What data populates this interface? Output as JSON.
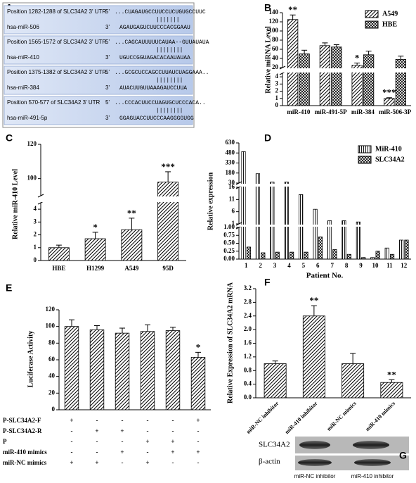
{
  "alignment": {
    "panel": "A",
    "end_labels": [
      "5'",
      "3'"
    ],
    "entries": [
      {
        "position": "Position 1282-1288 of SLC34A2 3' UTR",
        "mirna": "hsa-miR-506",
        "utr_seq": "...CUAGAUGCCUUCCUCUGUGCCUUC",
        "pairs": "|||||||",
        "mirna_seq": "AGAUGAGUCUUCCCACGGAAU"
      },
      {
        "position": "Position 1565-1572 of SLC34A2 3' UTR",
        "mirna": "hsa-miR-410",
        "utr_seq": "...CAGCAUUUUUCAUAA--GUUAUAUA",
        "pairs": "||||||||",
        "mirna_seq": "UGUCCGGUAGACACAAUAUAA"
      },
      {
        "position": "Position 1375-1382 of SLC34A2 3' UTR",
        "mirna": "hsa-miR-384",
        "utr_seq": "...GCGCUCCAGCCUUAUCUAGGAAA..",
        "pairs": "||||||||",
        "mirna_seq": "AUACUUGUUAAAGAUCCUUA"
      },
      {
        "position": "Position 570-577 of SLC34A2 3' UTR",
        "mirna": "hsa-miR-491-5p",
        "utr_seq": "...CCCACUUCCUAGUGCUCCCACA..",
        "pairs": "||||||||",
        "mirna_seq": "GGAGUACCUUCCCAAGGGGUGG"
      }
    ]
  },
  "chart_data": [
    {
      "type": "bar",
      "panel": "B",
      "ylabel": "Relative miRNA Level",
      "categories": [
        "miR-410",
        "miR-491-5P",
        "miR-384",
        "miR-506-3P"
      ],
      "series": [
        {
          "name": "A549",
          "color": "#000000",
          "pattern": "diagonal",
          "values": [
            125,
            68,
            25,
            1.0
          ],
          "errors": [
            10,
            6,
            5,
            0.1
          ],
          "annotations": [
            "**",
            null,
            "*",
            "***"
          ]
        },
        {
          "name": "HBE",
          "color": "#000000",
          "pattern": "crosshatch",
          "values": [
            50,
            65,
            48,
            38
          ],
          "errors": [
            8,
            5,
            8,
            7
          ],
          "annotations": [
            null,
            null,
            null,
            null
          ]
        }
      ],
      "y_segments": [
        {
          "ylim": [
            0,
            4.5
          ],
          "yticks": [
            0,
            1,
            2,
            3,
            4
          ]
        },
        {
          "ylim": [
            20,
            140
          ],
          "yticks": [
            20,
            40,
            60,
            80,
            100,
            120,
            140
          ]
        }
      ],
      "legend": "upper right"
    },
    {
      "type": "bar",
      "panel": "C",
      "ylabel": "Relative miR-410 Level",
      "categories": [
        "HBE",
        "H1299",
        "A549",
        "95D"
      ],
      "color": "#000000",
      "pattern": "diagonal",
      "values": [
        1.0,
        1.7,
        2.4,
        98
      ],
      "errors": [
        0.2,
        0.5,
        0.9,
        6
      ],
      "annotations": [
        null,
        "*",
        "**",
        "***"
      ],
      "y_segments": [
        {
          "ylim": [
            0,
            4.5
          ],
          "yticks": [
            0,
            1,
            2,
            3,
            4
          ]
        },
        {
          "ylim": [
            90,
            120
          ],
          "yticks": [
            100,
            120
          ]
        }
      ]
    },
    {
      "type": "bar",
      "panel": "D",
      "ylabel": "Relative expression",
      "xlabel": "Patient No.",
      "categories": [
        "1",
        "2",
        "3",
        "4",
        "5",
        "6",
        "7",
        "8",
        "9",
        "10",
        "11",
        "12"
      ],
      "series": [
        {
          "name": "MiR-410",
          "color": "#000000",
          "pattern": "vertical",
          "values": [
            500,
            170,
            45,
            45,
            13,
            7,
            2.3,
            2.3,
            1.8,
            0.05,
            0.35,
            0.6
          ]
        },
        {
          "name": "SLC34A2",
          "color": "#000000",
          "pattern": "crosshatch",
          "values": [
            0.38,
            0.2,
            0.22,
            0.22,
            0.22,
            0.7,
            0.3,
            0.15,
            0.05,
            0.25,
            0.15,
            0.6
          ]
        }
      ],
      "y_segments": [
        {
          "ylim": [
            0,
            1
          ],
          "yticks": [
            {
              "value": 0,
              "label": "0.00"
            },
            0.25,
            {
              "value": 0.5,
              "label": "0.50"
            },
            0.75,
            {
              "value": 1,
              "label": "1.00"
            }
          ]
        },
        {
          "ylim": [
            1,
            16
          ],
          "yticks": [
            1,
            6,
            11,
            16
          ]
        },
        {
          "ylim": [
            30,
            630
          ],
          "yticks": [
            30,
            180,
            330,
            480,
            630
          ]
        }
      ],
      "legend": "upper right"
    },
    {
      "type": "bar",
      "panel": "E",
      "ylabel": "Luciferase Activity",
      "categories": [
        null,
        null,
        null,
        null,
        null,
        null
      ],
      "color": "#000000",
      "pattern": "diagonal",
      "values": [
        100,
        96,
        92,
        94,
        95,
        63
      ],
      "errors": [
        8,
        5,
        6,
        8,
        4,
        6
      ],
      "annotations": [
        null,
        null,
        null,
        null,
        null,
        "*"
      ],
      "ylim": [
        0,
        120
      ],
      "yticks": [
        0,
        20,
        40,
        60,
        80,
        100,
        120
      ],
      "conditions": [
        {
          "label": "P-SLC34A2-F",
          "signs": [
            "+",
            "-",
            "-",
            "-",
            "-",
            "+"
          ]
        },
        {
          "label": "P-SLC34A2-R",
          "signs": [
            "-",
            "+",
            "+",
            "-",
            "-",
            "-"
          ]
        },
        {
          "label": "P",
          "signs": [
            "-",
            "-",
            "-",
            "+",
            "+",
            "-"
          ]
        },
        {
          "label": "miR-410 mimics",
          "signs": [
            "-",
            "-",
            "+",
            "-",
            "+",
            "+"
          ]
        },
        {
          "label": "miR-NC mimics",
          "signs": [
            "+",
            "+",
            "-",
            "+",
            "-",
            "-"
          ]
        }
      ]
    },
    {
      "type": "bar",
      "panel": "F",
      "ylabel": "Relative Expression of SLC34A2 mRNA",
      "categories": [
        "miR-NC inhibitor",
        "miR-410 inhibitor",
        "miR-NC mimics",
        "miR-410 mimics"
      ],
      "color": "#000000",
      "pattern": "diagonal",
      "values": [
        1.0,
        2.4,
        1.0,
        0.45
      ],
      "errors": [
        0.08,
        0.3,
        0.3,
        0.08
      ],
      "annotations": [
        null,
        "**",
        null,
        "**"
      ],
      "ylim": [
        0,
        3.2
      ],
      "yticks": [
        {
          "value": 0,
          "label": "0.0"
        },
        0.4,
        0.8,
        1.2,
        1.6,
        {
          "value": 2,
          "label": "2.0"
        },
        2.4,
        2.8,
        3.2
      ]
    }
  ],
  "blot": {
    "panel": "G",
    "bands": [
      "SLC34A2",
      "β-actin"
    ],
    "lanes": [
      "miR-NC inhibitor",
      "miR-410 inhibitor"
    ]
  }
}
